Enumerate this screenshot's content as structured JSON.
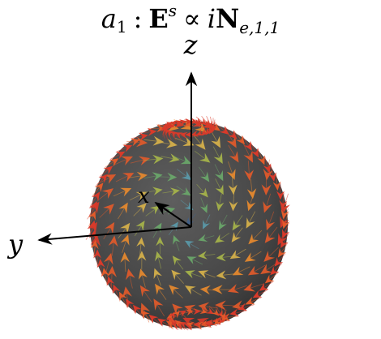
{
  "title": {
    "a": "a",
    "a_sub": "1",
    "colon": ":",
    "E": "E",
    "E_sup": "s",
    "propto": "∝",
    "i": "i",
    "N": "N",
    "N_sub": "e,1,1"
  },
  "axes": {
    "z_label": "z",
    "y_label": "y",
    "x_label": "x"
  },
  "sphere": {
    "fill": "#4b4b4b",
    "rim": "#cc3322"
  },
  "arrow_colors": [
    "#d83a2a",
    "#e25a2a",
    "#e88a2e",
    "#d8b24a",
    "#a7b54a",
    "#6aa86a",
    "#5a9aaa",
    "#3f5f8a",
    "#2c2f5a"
  ]
}
